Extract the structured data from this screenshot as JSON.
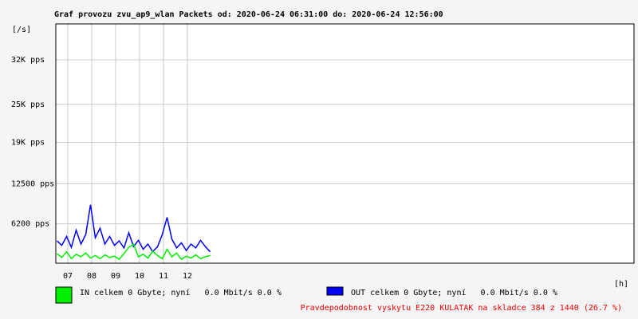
{
  "chart_data": {
    "type": "line",
    "title": "Graf provozu zvu_ap9_wlan Packets od: 2020-06-24 06:31:00 do: 2020-06-24 12:56:00",
    "y_label": "[/s]",
    "x_label": "[h]",
    "x": [
      6.55,
      6.75,
      6.95,
      7.15,
      7.35,
      7.55,
      7.75,
      7.95,
      8.15,
      8.35,
      8.55,
      8.75,
      8.95,
      9.15,
      9.35,
      9.55,
      9.75,
      9.95,
      10.15,
      10.35,
      10.55,
      10.75,
      10.95,
      11.15,
      11.35,
      11.55,
      11.75,
      11.95,
      12.15,
      12.35,
      12.55,
      12.75,
      12.95
    ],
    "series": [
      {
        "name": "IN celkem 0 Gbyte; nyní   0.0 Mbit/s 0.0 %",
        "color": "#00ee00",
        "values": [
          1500,
          900,
          1800,
          700,
          1400,
          1000,
          1600,
          800,
          1200,
          700,
          1300,
          900,
          1100,
          600,
          1500,
          2500,
          3000,
          1000,
          1400,
          800,
          1900,
          1200,
          700,
          2200,
          1000,
          1600,
          600,
          1100,
          800,
          1300,
          700,
          1000,
          1200
        ]
      },
      {
        "name": "OUT celkem 0 Gbyte; nyní   0.0 Mbit/s 0.0 %",
        "color": "#0000ff",
        "values": [
          3500,
          2800,
          4200,
          2500,
          5200,
          3000,
          4500,
          9200,
          4000,
          5500,
          3000,
          4200,
          2800,
          3500,
          2400,
          4800,
          2600,
          3600,
          2200,
          3000,
          1800,
          2600,
          4500,
          7200,
          3800,
          2400,
          3200,
          2000,
          3000,
          2400,
          3600,
          2600,
          1800
        ]
      }
    ],
    "xlim": [
      6.5,
      30.67
    ],
    "xticks": [
      {
        "value": 7,
        "label": "07"
      },
      {
        "value": 8,
        "label": "08"
      },
      {
        "value": 9,
        "label": "09"
      },
      10,
      11,
      12
    ],
    "ylim": [
      0,
      37650
    ],
    "yticks": [
      {
        "value": 6200,
        "label": "6200 pps"
      },
      {
        "value": 12500,
        "label": "12500 pps"
      },
      {
        "value": 19000,
        "label": "19K pps"
      },
      {
        "value": 25000,
        "label": "25K pps"
      },
      {
        "value": 32000,
        "label": "32K pps"
      }
    ],
    "grid": true,
    "note": "Pravdepodobnost vyskytu E220 KULATAK na skladce 384 z 1440 (26.7 %)",
    "note_color": "#ee0000"
  }
}
